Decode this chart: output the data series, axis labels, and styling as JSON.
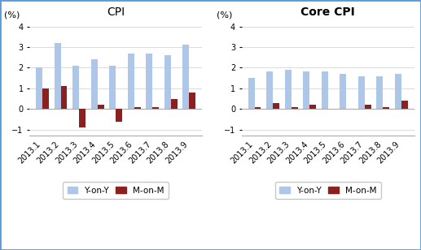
{
  "cpi_title": "CPI",
  "core_cpi_title": "Core CPI",
  "ylabel": "(%)",
  "categories": [
    "2013.1",
    "2013.2",
    "2013.3",
    "2013.4",
    "2013.5",
    "2013.6",
    "2013.7",
    "2013.8",
    "2013.9"
  ],
  "cpi_yoy": [
    2.0,
    3.2,
    2.1,
    2.4,
    2.1,
    2.7,
    2.7,
    2.6,
    3.1
  ],
  "cpi_mom": [
    1.0,
    1.1,
    -0.9,
    0.2,
    -0.6,
    0.1,
    0.1,
    0.5,
    0.8
  ],
  "core_yoy": [
    1.5,
    1.8,
    1.9,
    1.8,
    1.8,
    1.7,
    1.6,
    1.6,
    1.7
  ],
  "core_mom": [
    0.1,
    0.3,
    0.1,
    0.2,
    0.0,
    0.0,
    0.2,
    0.1,
    0.4
  ],
  "bar_width": 0.35,
  "yoy_color": "#aec6e8",
  "mom_color": "#8b2020",
  "ylim": [
    -1.3,
    4.3
  ],
  "yticks": [
    -1,
    0,
    1,
    2,
    3,
    4
  ],
  "bg_color": "#ffffff",
  "legend_yoy": "Y-on-Y",
  "legend_mom": "M-on-M",
  "title_fontsize": 10,
  "tick_fontsize": 7,
  "label_fontsize": 8,
  "legend_fontsize": 7.5
}
